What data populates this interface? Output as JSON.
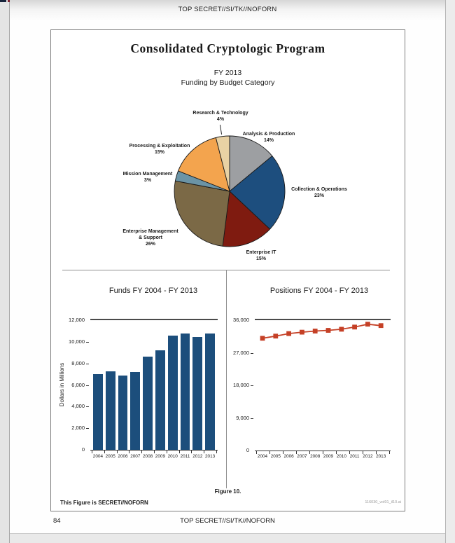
{
  "page": {
    "header_classification": "TOP SECRET//SI/TK//NOFORN",
    "footer_classification": "TOP SECRET//SI/TK//NOFORN",
    "page_number": "84"
  },
  "figure": {
    "title": "Consolidated Cryptologic Program",
    "subtitle_line1": "FY 2013",
    "subtitle_line2": "Funding by Budget Category",
    "caption": "Figure 10.",
    "classification_note": "This Figure is SECRET//NOFORN",
    "file_ref": "116030_vol01_il10.ai"
  },
  "chart_data": [
    {
      "type": "pie",
      "title": "FY 2013 Funding by Budget Category",
      "direction": "clockwise",
      "start_angle_deg": 0,
      "slices": [
        {
          "label": "Analysis & Production",
          "pct": 14,
          "color": "#9d9fa2",
          "label_lines": [
            "Analysis & Production",
            "14%"
          ]
        },
        {
          "label": "Collection & Operations",
          "pct": 23,
          "color": "#1d4e7e",
          "label_lines": [
            "Collection & Operations",
            "23%"
          ]
        },
        {
          "label": "Enterprise IT",
          "pct": 15,
          "color": "#7f1b10",
          "label_lines": [
            "Enterprise IT",
            "15%"
          ]
        },
        {
          "label": "Enterprise Management & Support",
          "pct": 26,
          "color": "#7b6946",
          "label_lines": [
            "Enterprise Management",
            "& Support",
            "26%"
          ]
        },
        {
          "label": "Mission Management",
          "pct": 3,
          "color": "#6b94a6",
          "label_lines": [
            "Mission Management",
            "3%"
          ]
        },
        {
          "label": "Processing & Exploitation",
          "pct": 15,
          "color": "#f3a44e",
          "label_lines": [
            "Processing & Exploitation",
            "15%"
          ]
        },
        {
          "label": "Research & Technology",
          "pct": 4,
          "color": "#e9d2a4",
          "label_lines": [
            "Research & Technology",
            "4%"
          ]
        }
      ],
      "outline_color": "#1a1a1a"
    },
    {
      "type": "bar",
      "title": "Funds FY 2004 - FY 2013",
      "ylabel": "Dollars in Millions",
      "categories": [
        "2004",
        "2005",
        "2006",
        "2007",
        "2008",
        "2009",
        "2010",
        "2011",
        "2012",
        "2013"
      ],
      "values": [
        7000,
        7300,
        6900,
        7200,
        8600,
        9200,
        10600,
        10750,
        10450,
        10800
      ],
      "ylim": [
        0,
        12000
      ],
      "ytick_labels": [
        "0",
        "2,000",
        "4,000",
        "6,000",
        "8,000",
        "10,000",
        "12,000"
      ],
      "bar_color": "#1c4e7c",
      "top_rule_value": 12000
    },
    {
      "type": "line",
      "title": "Positions FY 2004 - FY 2013",
      "categories": [
        "2004",
        "2005",
        "2006",
        "2007",
        "2008",
        "2009",
        "2010",
        "2011",
        "2012",
        "2013"
      ],
      "values": [
        31000,
        31600,
        32300,
        32700,
        33000,
        33200,
        33500,
        34100,
        34900,
        34500
      ],
      "ylim": [
        0,
        36000
      ],
      "ytick_labels": [
        "0",
        "9,000",
        "18,000",
        "27,000",
        "36,000"
      ],
      "line_color": "#c54026",
      "marker": "square",
      "top_rule_value": 36000
    }
  ]
}
